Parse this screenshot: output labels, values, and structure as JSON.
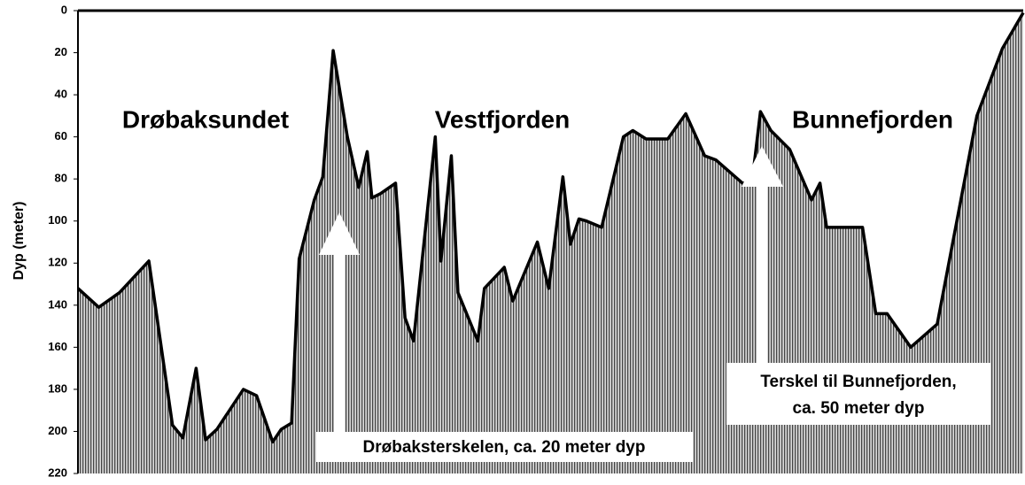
{
  "chart_data": {
    "type": "area",
    "ylabel": "Dyp (meter)",
    "x": [
      0,
      2.2,
      4.4,
      7.5,
      10.0,
      11.1,
      12.5,
      13.5,
      14.7,
      17.5,
      18.9,
      20.6,
      21.5,
      22.6,
      23.4,
      25.0,
      25.9,
      27.0,
      28.5,
      29.7,
      30.6,
      31.1,
      32.0,
      33.6,
      34.6,
      35.5,
      37.8,
      38.4,
      39.5,
      40.2,
      42.3,
      43.0,
      45.1,
      46.0,
      48.6,
      49.8,
      51.3,
      52.1,
      53.0,
      53.8,
      55.4,
      57.7,
      58.7,
      60.1,
      62.4,
      64.3,
      66.3,
      67.5,
      70.3,
      71.3,
      72.2,
      73.3,
      75.3,
      77.6,
      78.5,
      79.2,
      83.0,
      84.4,
      85.6,
      88.1,
      90.9,
      95.1,
      97.8,
      100
    ],
    "values": [
      132,
      141,
      134,
      119,
      197,
      203,
      170,
      204,
      199,
      180,
      183,
      205,
      199,
      196,
      118,
      90,
      79,
      19,
      60,
      84,
      67,
      89,
      87,
      82,
      146,
      157,
      60,
      119,
      69,
      134,
      157,
      132,
      122,
      138,
      110,
      132,
      79,
      111,
      99,
      100,
      103,
      60,
      57,
      61,
      61,
      49,
      69,
      71,
      82,
      82,
      48,
      57,
      66,
      90,
      82,
      103,
      103,
      144,
      144,
      160,
      149,
      50,
      18,
      1
    ],
    "xlim": [
      0,
      100
    ],
    "ylim": [
      0,
      220
    ],
    "inverted": true,
    "yticks": [
      0,
      20,
      40,
      60,
      80,
      100,
      120,
      140,
      160,
      180,
      200,
      220
    ],
    "color": "#000000",
    "annotations": [
      "Drøbaksundet",
      "Vestfjorden",
      "Bunnefjorden",
      "Drøbaksterskelen, ca. 20 meter dyp",
      "Terskel til Bunnefjorden,",
      "ca. 50 meter dyp"
    ]
  }
}
